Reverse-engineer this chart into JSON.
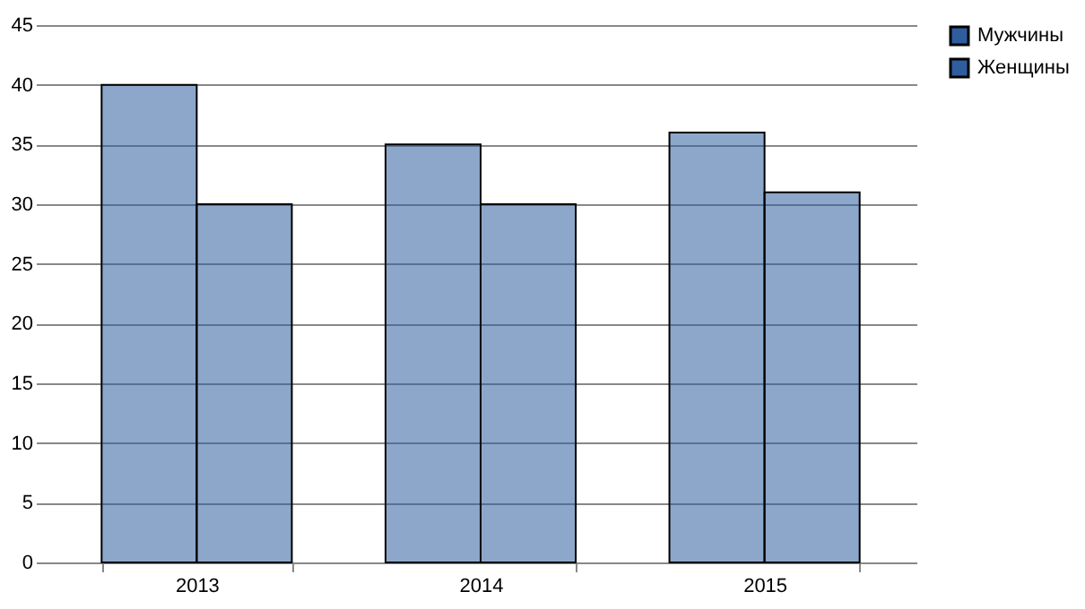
{
  "chart_data": {
    "type": "bar",
    "categories": [
      "2013",
      "2014",
      "2015"
    ],
    "series": [
      {
        "name": "Мужчины",
        "color": "#2e5e9e",
        "values": [
          40,
          35,
          36
        ]
      },
      {
        "name": "Женщины",
        "color": "#2e5e9e",
        "values": [
          30,
          30,
          31
        ]
      }
    ],
    "ylim": [
      0,
      45
    ],
    "yticks": [
      0,
      5,
      10,
      15,
      20,
      25,
      30,
      35,
      40,
      45
    ],
    "grid": "y",
    "legend": "right"
  }
}
